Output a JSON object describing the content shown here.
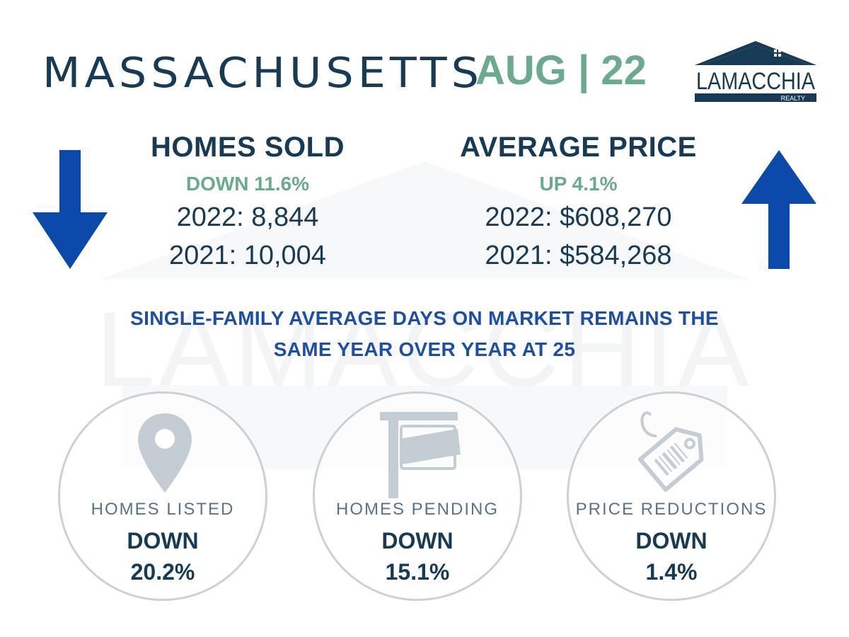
{
  "header": {
    "state": "MASSACHUSETTS",
    "period": "AUG | 22",
    "logo": {
      "name": "LAMACCHIA",
      "sub": "REALTY"
    }
  },
  "homes_sold": {
    "heading": "HOMES SOLD",
    "change": "DOWN 11.6%",
    "year_2022": "2022: 8,844",
    "year_2021": "2021: 10,004",
    "direction": "down"
  },
  "average_price": {
    "heading": "AVERAGE PRICE",
    "change": "UP 4.1%",
    "year_2022": "2022: $608,270",
    "year_2021": "2021: $584,268",
    "direction": "up"
  },
  "days_on_market": {
    "line1": "SINGLE-FAMILY AVERAGE DAYS ON MARKET REMAINS THE",
    "line2": "SAME YEAR OVER YEAR AT 25"
  },
  "metrics": [
    {
      "icon": "location-pin-icon",
      "label": "HOMES LISTED",
      "direction": "DOWN",
      "value": "20.2%"
    },
    {
      "icon": "sale-sign-icon",
      "label": "HOMES PENDING",
      "direction": "DOWN",
      "value": "15.1%"
    },
    {
      "icon": "price-tag-icon",
      "label": "PRICE REDUCTIONS",
      "direction": "DOWN",
      "value": "1.4%"
    }
  ],
  "colors": {
    "navy": "#173a55",
    "green": "#6aaa8e",
    "arrow_blue": "#0b4aa8",
    "statement_blue": "#1d4fa8",
    "circle_border": "#c9d1d9",
    "icon_grey": "#c4ccd4"
  }
}
